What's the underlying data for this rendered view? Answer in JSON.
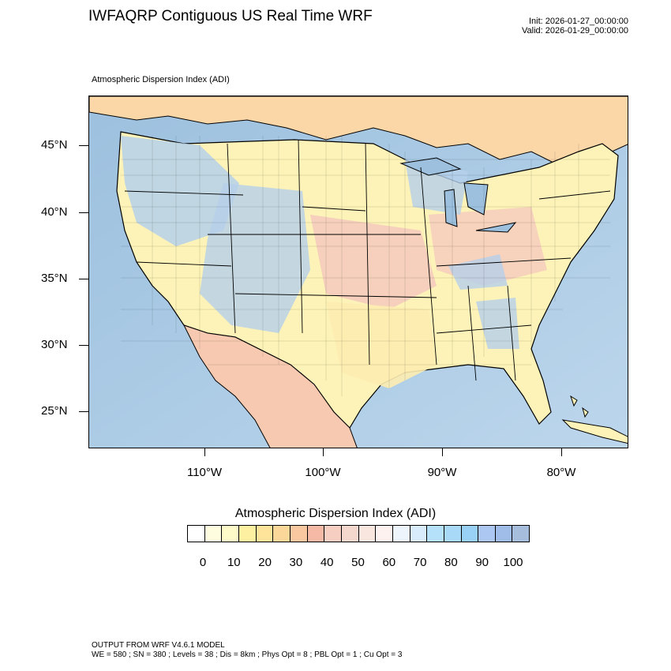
{
  "header": {
    "title": "IWFAQRP Contiguous US Real Time WRF",
    "init": "Init: 2026-01-27_00:00:00",
    "valid": "Valid: 2026-01-29_00:00:00"
  },
  "map": {
    "subtitle": "Atmospheric Dispersion Index   (ADI)",
    "lat_labels": [
      "45°N",
      "40°N",
      "35°N",
      "30°N",
      "25°N"
    ],
    "lon_labels": [
      "110°W",
      "100°W",
      "90°W",
      "80°W"
    ],
    "colors": {
      "ocean": "#a9c8e0",
      "ocean_light": "#d6e8f4",
      "land_warm": "#fbd7a8",
      "land_yellow": "#fdf3b8",
      "land_pink": "#f4c7bd",
      "land_blue": "#b5d0ea",
      "boundary": "#000000"
    }
  },
  "colorbar": {
    "title": "Atmospheric Dispersion Index  (ADI)",
    "colors": [
      "#ffffff",
      "#fffde0",
      "#fffbc8",
      "#fdf0a0",
      "#fde49a",
      "#fbd79a",
      "#f9c8a0",
      "#f6b9a5",
      "#f6cfc2",
      "#f4d8ce",
      "#f8e6df",
      "#fdf2f0",
      "#eef4fb",
      "#d9ecfb",
      "#b5e2fa",
      "#a8d9f7",
      "#99d0f5",
      "#acc8f2",
      "#a0bdea",
      "#a6bedb"
    ],
    "labels": [
      "0",
      "10",
      "20",
      "30",
      "40",
      "50",
      "60",
      "70",
      "80",
      "90",
      "100"
    ]
  },
  "footer": {
    "line1": "OUTPUT FROM WRF V4.6.1 MODEL",
    "line2": "WE = 580 ; SN = 380 ; Levels = 38 ; Dis = 8km ; Phys Opt = 8 ; PBL Opt = 1 ; Cu Opt = 3"
  }
}
